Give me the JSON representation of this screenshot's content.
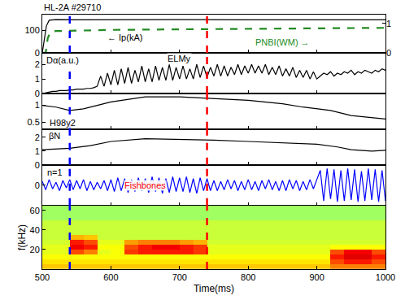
{
  "chart_data": [
    {
      "type": "line",
      "title": "HL-2A #29710",
      "xlim": [
        500,
        1000
      ],
      "xticks": [
        500,
        600,
        700,
        800,
        900,
        1000
      ],
      "ylim": [
        0,
        170
      ],
      "yticks": [
        0,
        100
      ],
      "y2lim": [
        0,
        1.3
      ],
      "y2ticks": [
        0,
        1
      ],
      "tick_labels": "y",
      "grid": false,
      "series": [
        {
          "name": "Ip(kA)",
          "color": "#000000",
          "line_style": "solid",
          "x": [
            500,
            503,
            506,
            510,
            520,
            550,
            600,
            700,
            800,
            900,
            950,
            1000
          ],
          "values": [
            0,
            60,
            120,
            145,
            148,
            147,
            148,
            148,
            147,
            148,
            148,
            147
          ]
        },
        {
          "name": "PNBI(WM)",
          "color": "#228b22",
          "line_style": "dash",
          "axis": "y2",
          "x": [
            500,
            505,
            508,
            512,
            520,
            540,
            600,
            700,
            800,
            900,
            1000
          ],
          "values": [
            0,
            0,
            0.5,
            0.72,
            0.74,
            0.75,
            0.78,
            0.8,
            0.82,
            0.83,
            0.85
          ]
        }
      ],
      "annotations": [
        {
          "text": "← Ip(kA)",
          "x": 620,
          "y": 70,
          "color": "#000000"
        },
        {
          "text": "PNBI(WM) →",
          "x": 850,
          "y": 0.35,
          "axis": "y2",
          "color": "#228b22"
        }
      ],
      "vlines": [
        {
          "x": 540,
          "color": "#0000ff",
          "line_style": "dash"
        },
        {
          "x": 740,
          "color": "#ff0000",
          "line_style": "dash"
        }
      ]
    },
    {
      "type": "line",
      "xlim": [
        500,
        1000
      ],
      "xticks": [
        500,
        600,
        700,
        800,
        900,
        1000
      ],
      "ylim": [
        0,
        2.8
      ],
      "yticks": [
        0,
        1,
        2
      ],
      "tick_labels": "y",
      "grid": false,
      "x": [
        500,
        505,
        510,
        515,
        520,
        525,
        530,
        535,
        540,
        545,
        550,
        555,
        560,
        565,
        570,
        575,
        580,
        585,
        590,
        595,
        600,
        605,
        610,
        615,
        620,
        625,
        630,
        635,
        640,
        645,
        650,
        655,
        660,
        665,
        670,
        675,
        680,
        685,
        690,
        695,
        700,
        705,
        710,
        715,
        720,
        725,
        730,
        735,
        740,
        745,
        750,
        755,
        760,
        765,
        770,
        775,
        780,
        785,
        790,
        795,
        800,
        805,
        810,
        815,
        820,
        825,
        830,
        835,
        840,
        845,
        850,
        855,
        860,
        865,
        870,
        875,
        880,
        885,
        890,
        895,
        900,
        905,
        910,
        915,
        920,
        925,
        930,
        935,
        940,
        945,
        950,
        955,
        960,
        965,
        970,
        975,
        980,
        985,
        990,
        995,
        1000
      ],
      "series": [
        {
          "name": "Dα",
          "color": "#000000",
          "line_style": "solid",
          "values": [
            0.0,
            0.05,
            0.1,
            0.15,
            0.15,
            0.2,
            0.2,
            0.2,
            0.25,
            0.25,
            0.3,
            0.3,
            0.3,
            0.35,
            0.35,
            0.4,
            0.5,
            1.2,
            0.5,
            1.4,
            0.6,
            1.6,
            0.6,
            1.7,
            0.7,
            1.8,
            0.7,
            1.6,
            0.8,
            1.9,
            0.8,
            1.7,
            0.8,
            1.9,
            0.9,
            1.8,
            0.9,
            2.0,
            0.9,
            1.8,
            1.0,
            1.9,
            1.0,
            1.7,
            1.0,
            2.0,
            1.1,
            1.9,
            1.1,
            1.8,
            1.2,
            2.0,
            1.2,
            1.9,
            1.2,
            1.8,
            1.3,
            2.0,
            1.3,
            1.9,
            1.4,
            2.0,
            1.4,
            1.9,
            1.4,
            2.0,
            1.3,
            1.8,
            1.3,
            1.9,
            1.2,
            1.7,
            1.2,
            1.8,
            1.1,
            1.6,
            1.1,
            1.6,
            1.0,
            1.5,
            1.0,
            1.2,
            1.4,
            1.3,
            1.5,
            1.2,
            1.4,
            1.3,
            1.5,
            1.4,
            1.6,
            1.3,
            1.5,
            1.4,
            1.6,
            1.5,
            1.4,
            1.6,
            1.5,
            1.7,
            1.6
          ]
        }
      ],
      "annotations": [
        {
          "text": "Dα(a.u.)",
          "x": 530,
          "y": 2.3,
          "color": "#000000"
        },
        {
          "text": "ELMy",
          "x": 700,
          "y": 2.4,
          "color": "#000000"
        }
      ],
      "vlines": [
        {
          "x": 540,
          "color": "#0000ff",
          "line_style": "dash"
        },
        {
          "x": 740,
          "color": "#ff0000",
          "line_style": "dash"
        }
      ]
    },
    {
      "type": "line",
      "xlim": [
        500,
        1000
      ],
      "xticks": [
        500,
        600,
        700,
        800,
        900,
        1000
      ],
      "ylim": [
        0.3,
        1.35
      ],
      "yticks": [
        0.5,
        1
      ],
      "tick_labels": "y",
      "grid": false,
      "series": [
        {
          "name": "H98y2",
          "color": "#000000",
          "line_style": "solid",
          "x": [
            500,
            520,
            540,
            560,
            600,
            650,
            700,
            750,
            800,
            850,
            880,
            920,
            950,
            1000
          ],
          "values": [
            1.0,
            0.95,
            0.85,
            0.9,
            1.1,
            1.25,
            1.25,
            1.2,
            1.15,
            1.05,
            0.95,
            0.85,
            0.7,
            0.6
          ]
        }
      ],
      "annotations": [
        {
          "text": "H98y2",
          "x": 530,
          "y": 0.5,
          "color": "#000000"
        }
      ],
      "vlines": [
        {
          "x": 540,
          "color": "#0000ff",
          "line_style": "dash"
        },
        {
          "x": 740,
          "color": "#ff0000",
          "line_style": "dash"
        }
      ]
    },
    {
      "type": "line",
      "xlim": [
        500,
        1000
      ],
      "xticks": [
        500,
        600,
        700,
        800,
        900,
        1000
      ],
      "ylim": [
        0,
        2.6
      ],
      "yticks": [
        0,
        1,
        2
      ],
      "tick_labels": "y",
      "grid": false,
      "series": [
        {
          "name": "βN",
          "color": "#000000",
          "line_style": "solid",
          "x": [
            500,
            540,
            570,
            600,
            650,
            700,
            750,
            800,
            850,
            900,
            930,
            950,
            980,
            1000
          ],
          "values": [
            1.1,
            1.2,
            1.4,
            1.7,
            1.9,
            1.85,
            1.8,
            1.7,
            1.6,
            1.5,
            1.3,
            1.1,
            1.0,
            1.05
          ]
        }
      ],
      "annotations": [
        {
          "text": "βN",
          "x": 518,
          "y": 2.1,
          "color": "#000000"
        }
      ],
      "vlines": [
        {
          "x": 540,
          "color": "#0000ff",
          "line_style": "dash"
        },
        {
          "x": 740,
          "color": "#ff0000",
          "line_style": "dash"
        }
      ]
    },
    {
      "type": "line",
      "xlim": [
        500,
        1000
      ],
      "xticks": [
        500,
        600,
        700,
        800,
        900,
        1000
      ],
      "ylim": [
        -1.1,
        1.1
      ],
      "yticks": [
        0
      ],
      "tick_labels": "y",
      "grid": false,
      "x": [
        500,
        505,
        510,
        515,
        520,
        525,
        530,
        535,
        540,
        545,
        550,
        555,
        560,
        565,
        570,
        575,
        580,
        585,
        590,
        595,
        600,
        605,
        610,
        615,
        620,
        625,
        630,
        635,
        640,
        645,
        650,
        655,
        660,
        665,
        670,
        675,
        680,
        685,
        690,
        695,
        700,
        705,
        710,
        715,
        720,
        725,
        730,
        735,
        740,
        745,
        750,
        755,
        760,
        765,
        770,
        775,
        780,
        785,
        790,
        795,
        800,
        805,
        810,
        815,
        820,
        825,
        830,
        835,
        840,
        845,
        850,
        855,
        860,
        865,
        870,
        875,
        880,
        885,
        890,
        895,
        900,
        905,
        910,
        915,
        920,
        925,
        930,
        935,
        940,
        945,
        950,
        955,
        960,
        965,
        970,
        975,
        980,
        985,
        990,
        995,
        1000
      ],
      "series": [
        {
          "name": "n=1",
          "color": "#0000ff",
          "line_style": "solid",
          "values": [
            0.2,
            -0.25,
            0.3,
            -0.2,
            0.15,
            -0.3,
            0.25,
            -0.15,
            0.3,
            -0.25,
            0.25,
            -0.2,
            0.3,
            -0.3,
            0.2,
            -0.25,
            0.15,
            -0.2,
            0.25,
            -0.3,
            0.3,
            -0.35,
            0.4,
            -0.3,
            0.35,
            -0.4,
            0.3,
            -0.35,
            0.4,
            -0.3,
            0.35,
            -0.4,
            0.45,
            -0.35,
            0.4,
            -0.45,
            0.35,
            -0.4,
            0.45,
            -0.35,
            0.4,
            -0.35,
            0.45,
            -0.4,
            0.35,
            -0.45,
            0.4,
            -0.3,
            0.35,
            -0.3,
            0.25,
            -0.3,
            0.2,
            -0.25,
            0.3,
            -0.2,
            0.25,
            -0.3,
            0.2,
            -0.25,
            0.3,
            -0.25,
            0.2,
            -0.3,
            0.25,
            -0.2,
            0.3,
            -0.25,
            0.2,
            -0.3,
            0.25,
            -0.3,
            0.3,
            -0.2,
            0.25,
            -0.3,
            0.2,
            -0.25,
            0.3,
            -0.2,
            0.3,
            0.8,
            -0.85,
            0.9,
            -0.75,
            0.85,
            -0.9,
            0.8,
            -0.85,
            0.9,
            -0.8,
            0.85,
            -0.9,
            0.75,
            -0.85,
            0.9,
            -0.8,
            0.85,
            -0.9,
            0.8,
            -0.85
          ]
        }
      ],
      "annotations": [
        {
          "text": "n=1",
          "x": 518,
          "y": 0.7,
          "color": "#000000"
        },
        {
          "text": "Fishbones",
          "x": 650,
          "y": 0,
          "color": "#ff0000"
        }
      ],
      "vlines": [
        {
          "x": 540,
          "color": "#0000ff",
          "line_style": "dash"
        },
        {
          "x": 740,
          "color": "#ff0000",
          "line_style": "dash"
        }
      ]
    },
    {
      "type": "heatmap",
      "xlabel": "Time(ms)",
      "ylabel": "f(kHz)",
      "xlim": [
        500,
        1000
      ],
      "xticks": [
        500,
        600,
        700,
        800,
        900,
        1000
      ],
      "ylim": [
        0,
        65
      ],
      "yticks": [
        20,
        40,
        60
      ],
      "tick_labels": true,
      "grid": false,
      "zlim": [
        0,
        1
      ],
      "x": [
        510,
        530,
        550,
        570,
        590,
        610,
        630,
        650,
        670,
        690,
        710,
        730,
        750,
        770,
        790,
        810,
        830,
        850,
        870,
        890,
        910,
        930,
        950,
        970,
        990
      ],
      "y": [
        2.5,
        7.5,
        12.5,
        17.5,
        22.5,
        27.5,
        32.5,
        37.5,
        42.5,
        47.5,
        52.5,
        57.5,
        62.5
      ],
      "z": [
        [
          0.68,
          0.68,
          0.68,
          0.68,
          0.68,
          0.68,
          0.68,
          0.68,
          0.68,
          0.68,
          0.68,
          0.68,
          0.68,
          0.68,
          0.68,
          0.68,
          0.68,
          0.68,
          0.68,
          0.68,
          0.68,
          0.75,
          0.75,
          0.75,
          0.75
        ],
        [
          0.65,
          0.65,
          0.65,
          0.65,
          0.65,
          0.65,
          0.65,
          0.65,
          0.65,
          0.65,
          0.65,
          0.65,
          0.65,
          0.65,
          0.65,
          0.65,
          0.65,
          0.65,
          0.65,
          0.65,
          0.65,
          0.8,
          0.85,
          0.85,
          0.8
        ],
        [
          0.62,
          0.62,
          0.62,
          0.62,
          0.62,
          0.62,
          0.62,
          0.62,
          0.62,
          0.62,
          0.62,
          0.62,
          0.62,
          0.62,
          0.62,
          0.62,
          0.62,
          0.62,
          0.62,
          0.62,
          0.62,
          0.85,
          0.9,
          0.9,
          0.85
        ],
        [
          0.6,
          0.6,
          0.8,
          0.75,
          0.6,
          0.62,
          0.82,
          0.85,
          0.85,
          0.85,
          0.85,
          0.82,
          0.6,
          0.6,
          0.6,
          0.6,
          0.6,
          0.6,
          0.6,
          0.6,
          0.6,
          0.8,
          0.88,
          0.88,
          0.8
        ],
        [
          0.6,
          0.6,
          0.88,
          0.85,
          0.62,
          0.62,
          0.8,
          0.85,
          0.88,
          0.88,
          0.85,
          0.82,
          0.6,
          0.6,
          0.6,
          0.6,
          0.6,
          0.6,
          0.6,
          0.6,
          0.6,
          0.62,
          0.62,
          0.62,
          0.62
        ],
        [
          0.58,
          0.58,
          0.85,
          0.8,
          0.6,
          0.6,
          0.72,
          0.75,
          0.75,
          0.75,
          0.72,
          0.7,
          0.58,
          0.58,
          0.58,
          0.58,
          0.58,
          0.58,
          0.58,
          0.58,
          0.58,
          0.58,
          0.58,
          0.58,
          0.58
        ],
        [
          0.57,
          0.57,
          0.7,
          0.68,
          0.57,
          0.57,
          0.57,
          0.57,
          0.57,
          0.57,
          0.57,
          0.57,
          0.57,
          0.57,
          0.57,
          0.57,
          0.57,
          0.57,
          0.57,
          0.57,
          0.57,
          0.57,
          0.57,
          0.57,
          0.57
        ],
        [
          0.57,
          0.57,
          0.57,
          0.57,
          0.57,
          0.57,
          0.57,
          0.57,
          0.57,
          0.57,
          0.57,
          0.57,
          0.57,
          0.57,
          0.57,
          0.57,
          0.57,
          0.57,
          0.57,
          0.57,
          0.57,
          0.57,
          0.57,
          0.57,
          0.57
        ],
        [
          0.57,
          0.57,
          0.57,
          0.57,
          0.57,
          0.57,
          0.57,
          0.57,
          0.57,
          0.57,
          0.57,
          0.57,
          0.57,
          0.57,
          0.57,
          0.57,
          0.57,
          0.57,
          0.57,
          0.57,
          0.57,
          0.57,
          0.57,
          0.57,
          0.57
        ],
        [
          0.57,
          0.57,
          0.57,
          0.57,
          0.57,
          0.57,
          0.57,
          0.57,
          0.57,
          0.57,
          0.57,
          0.57,
          0.57,
          0.57,
          0.57,
          0.57,
          0.57,
          0.57,
          0.57,
          0.57,
          0.57,
          0.57,
          0.57,
          0.57,
          0.57
        ],
        [
          0.53,
          0.53,
          0.53,
          0.53,
          0.53,
          0.53,
          0.53,
          0.53,
          0.53,
          0.53,
          0.53,
          0.53,
          0.53,
          0.53,
          0.53,
          0.53,
          0.53,
          0.53,
          0.53,
          0.53,
          0.53,
          0.53,
          0.53,
          0.53,
          0.53
        ],
        [
          0.53,
          0.53,
          0.53,
          0.53,
          0.53,
          0.53,
          0.53,
          0.53,
          0.53,
          0.53,
          0.53,
          0.53,
          0.53,
          0.53,
          0.53,
          0.53,
          0.53,
          0.53,
          0.53,
          0.53,
          0.53,
          0.53,
          0.53,
          0.53,
          0.53
        ],
        [
          0.53,
          0.53,
          0.53,
          0.53,
          0.53,
          0.53,
          0.53,
          0.53,
          0.53,
          0.53,
          0.53,
          0.53,
          0.53,
          0.53,
          0.53,
          0.53,
          0.53,
          0.53,
          0.53,
          0.53,
          0.53,
          0.53,
          0.53,
          0.53,
          0.53
        ]
      ],
      "vlines": [
        {
          "x": 540,
          "color": "#0000ff",
          "line_style": "dash"
        },
        {
          "x": 740,
          "color": "#ff0000",
          "line_style": "dash"
        }
      ]
    }
  ]
}
